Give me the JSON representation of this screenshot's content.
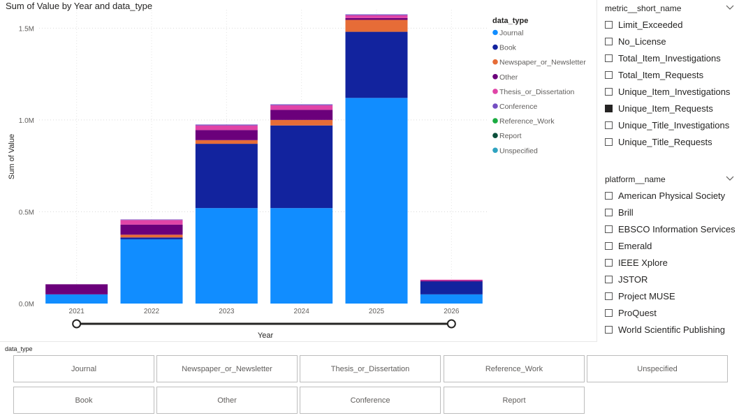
{
  "chart_data": {
    "type": "bar",
    "stacked": true,
    "title": "Sum of Value by Year and data_type",
    "xlabel": "Year",
    "ylabel": "Sum of Value",
    "ylim": [
      0,
      1600000
    ],
    "yticks": [
      0,
      500000,
      1000000,
      1500000
    ],
    "ytick_labels": [
      "0.0M",
      "0.5M",
      "1.0M",
      "1.5M"
    ],
    "grid": true,
    "legend_position": "top-right",
    "legend_title": "data_type",
    "categories": [
      "2021",
      "2022",
      "2023",
      "2024",
      "2025",
      "2026"
    ],
    "series": [
      {
        "name": "Journal",
        "color": "#118DFF",
        "values": [
          50000,
          350000,
          520000,
          520000,
          1120000,
          50000
        ]
      },
      {
        "name": "Book",
        "color": "#12239E",
        "values": [
          0,
          10000,
          350000,
          450000,
          360000,
          70000
        ]
      },
      {
        "name": "Newspaper_or_Newsletter",
        "color": "#E66C37",
        "values": [
          0,
          15000,
          20000,
          30000,
          65000,
          0
        ]
      },
      {
        "name": "Other",
        "color": "#6B007B",
        "values": [
          55000,
          55000,
          55000,
          55000,
          10000,
          5000
        ]
      },
      {
        "name": "Thesis_or_Dissertation",
        "color": "#E044A7",
        "values": [
          0,
          25000,
          25000,
          25000,
          15000,
          5000
        ]
      },
      {
        "name": "Conference",
        "color": "#744EC2",
        "values": [
          0,
          3000,
          5000,
          5000,
          5000,
          0
        ]
      },
      {
        "name": "Reference_Work",
        "color": "#1AAB40",
        "values": [
          0,
          0,
          0,
          0,
          0,
          0
        ]
      },
      {
        "name": "Report",
        "color": "#0B4F3B",
        "values": [
          0,
          0,
          0,
          0,
          0,
          0
        ]
      },
      {
        "name": "Unspecified",
        "color": "#2FA3C0",
        "values": [
          0,
          0,
          0,
          0,
          0,
          0
        ]
      }
    ]
  },
  "metric_slicer": {
    "title": "metric__short_name",
    "items": [
      {
        "label": "Limit_Exceeded",
        "checked": false
      },
      {
        "label": "No_License",
        "checked": false
      },
      {
        "label": "Total_Item_Investigations",
        "checked": false
      },
      {
        "label": "Total_Item_Requests",
        "checked": false
      },
      {
        "label": "Unique_Item_Investigations",
        "checked": false
      },
      {
        "label": "Unique_Item_Requests",
        "checked": true
      },
      {
        "label": "Unique_Title_Investigations",
        "checked": false
      },
      {
        "label": "Unique_Title_Requests",
        "checked": false
      }
    ]
  },
  "platform_slicer": {
    "title": "platform__name",
    "items": [
      {
        "label": "American Physical Society",
        "checked": false
      },
      {
        "label": "Brill",
        "checked": false
      },
      {
        "label": "EBSCO Information Services",
        "checked": false
      },
      {
        "label": "Emerald",
        "checked": false
      },
      {
        "label": "IEEE Xplore",
        "checked": false
      },
      {
        "label": "JSTOR",
        "checked": false
      },
      {
        "label": "Project MUSE",
        "checked": false
      },
      {
        "label": "ProQuest",
        "checked": false
      },
      {
        "label": "World Scientific Publishing",
        "checked": false
      }
    ]
  },
  "tile_slicer": {
    "title": "data_type",
    "tiles": [
      "Journal",
      "Newspaper_or_Newsletter",
      "Thesis_or_Dissertation",
      "Reference_Work",
      "Unspecified",
      "Book",
      "Other",
      "Conference",
      "Report"
    ]
  }
}
